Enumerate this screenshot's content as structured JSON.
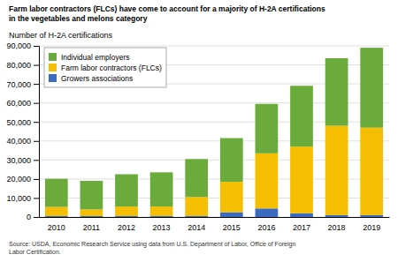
{
  "chart_data": {
    "type": "bar",
    "stacked": true,
    "title": "Farm labor contractors (FLCs) have come to account for a majority of H-2A certifications\nin the vegetables and melons category",
    "y_label": "Number of H-2A certifications",
    "source": "Source: USDA, Economic Research Service using data from U.S. Department of Labor, Office of Foreign\nLabor Certification.",
    "categories": [
      "2010",
      "2011",
      "2012",
      "2013",
      "2014",
      "2015",
      "2016",
      "2017",
      "2018",
      "2019"
    ],
    "series": [
      {
        "name": "Individual employers",
        "color": "#6aab3b",
        "values": [
          14800,
          15000,
          17000,
          18000,
          20000,
          23000,
          26000,
          32000,
          35500,
          42000
        ]
      },
      {
        "name": "Farm labor contractors (FLCs)",
        "color": "#f5be00",
        "values": [
          4800,
          3500,
          5000,
          5000,
          10000,
          16000,
          29000,
          35000,
          47000,
          46000
        ]
      },
      {
        "name": "Growers associations",
        "color": "#3a6bbf",
        "values": [
          500,
          500,
          500,
          500,
          500,
          2500,
          4500,
          2000,
          1000,
          1000
        ]
      }
    ],
    "ylim": [
      0,
      90000
    ],
    "yticks": [
      0,
      {
        "value": 10000,
        "label": "10,000"
      },
      {
        "value": 20000,
        "label": "20,000"
      },
      {
        "value": 30000,
        "label": "30,000"
      },
      {
        "value": 40000,
        "label": "40,000"
      },
      {
        "value": 50000,
        "label": "50,000"
      },
      {
        "value": 60000,
        "label": "60,000"
      },
      {
        "value": 70000,
        "label": "70,000"
      },
      {
        "value": 80000,
        "label": "80,000"
      },
      {
        "value": 90000,
        "label": "90,000"
      }
    ],
    "grid": true,
    "legend": "upper left"
  }
}
